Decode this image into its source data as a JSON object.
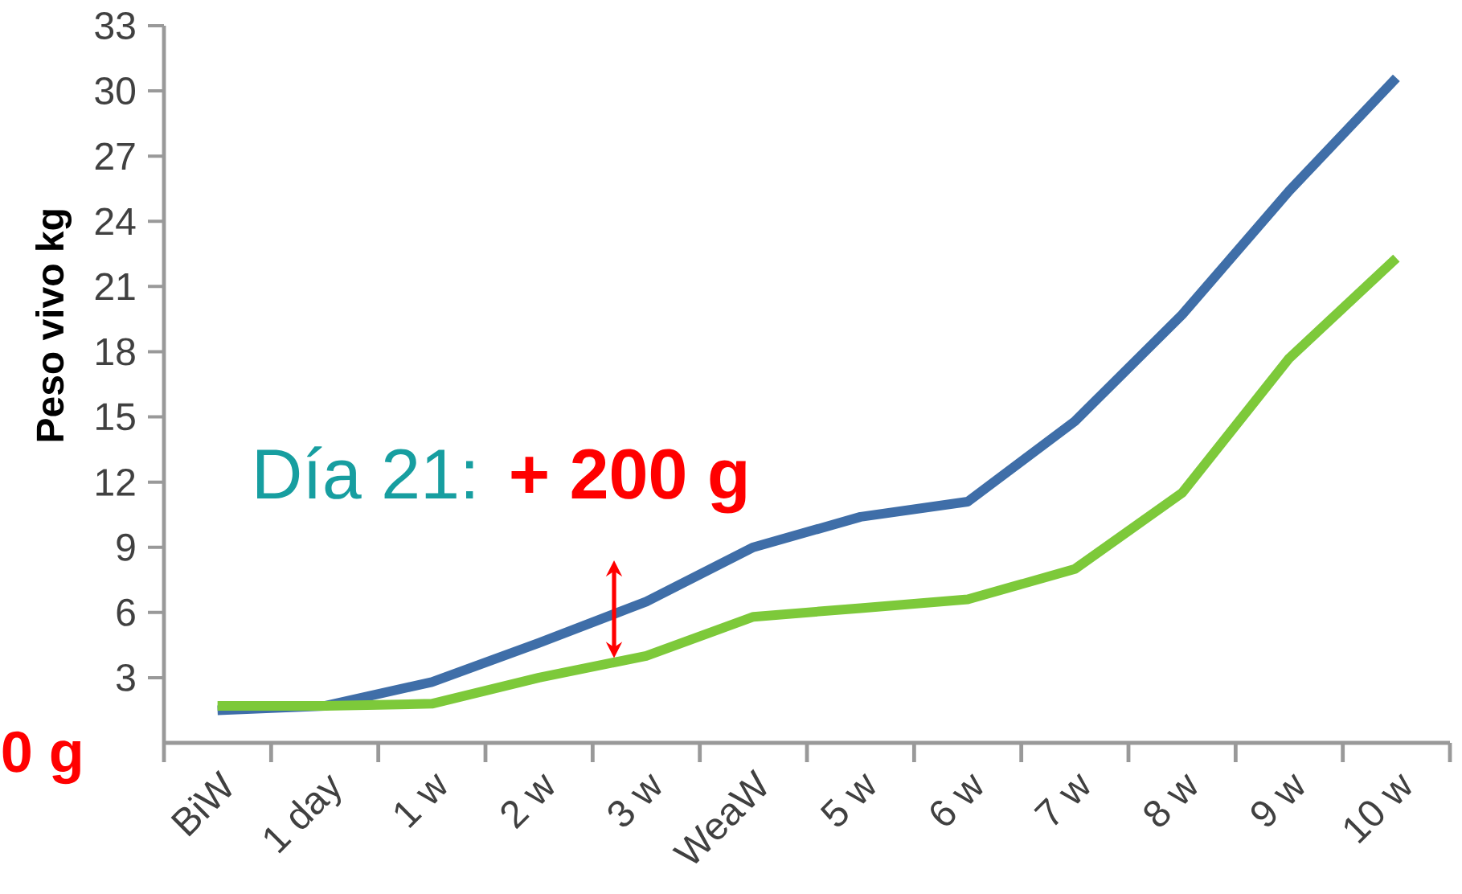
{
  "chart_data": {
    "type": "line",
    "ylabel": "Peso vivo kg",
    "categories": [
      "BiW",
      "1 day",
      "1 w",
      "2 w",
      "3 w",
      "WeaW",
      "5 w",
      "6 w",
      "7 w",
      "8 w",
      "9 w",
      "10 w"
    ],
    "series": [
      {
        "color": "#3f6ea8",
        "values": [
          1.5,
          1.7,
          2.8,
          4.6,
          6.5,
          9.0,
          10.4,
          11.1,
          14.8,
          19.7,
          25.4,
          30.6
        ]
      },
      {
        "color": "#7dc93a",
        "values": [
          1.7,
          1.7,
          1.8,
          3.0,
          4.0,
          5.8,
          6.2,
          6.6,
          8.0,
          11.5,
          17.7,
          22.3
        ]
      }
    ],
    "ylim": [
      0,
      33
    ],
    "yticks": [
      3,
      6,
      9,
      12,
      15,
      18,
      21,
      24,
      27,
      30,
      33
    ],
    "annotations": [
      "Día 21:",
      "+ 200 g",
      "0 g"
    ],
    "grid": false
  }
}
